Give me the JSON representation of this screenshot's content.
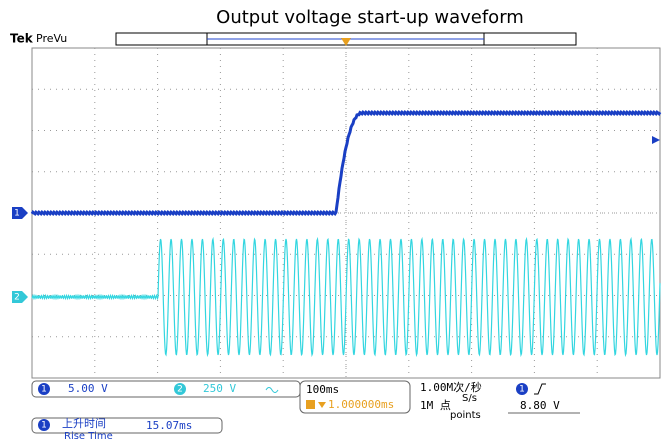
{
  "title": "Output voltage start-up waveform",
  "header": {
    "brand": "Tek",
    "mode": "PreVu"
  },
  "trigger_marker": "T",
  "channels": [
    {
      "marker": "1",
      "scale": "5.00 V"
    },
    {
      "marker": "2",
      "scale": "250 V"
    }
  ],
  "timebase": {
    "scale": "100ms",
    "delay": "1.000000ms",
    "sample_rate": "1.00M次/秒",
    "sample_rate_en": "S/s",
    "record_length": "1M 点",
    "record_length_en": "points"
  },
  "trigger": {
    "source": "1",
    "level": "8.80 V"
  },
  "measurement": {
    "source": "1",
    "name": "上升时间",
    "name_en": "Rise Time",
    "value": "15.07ms"
  }
}
